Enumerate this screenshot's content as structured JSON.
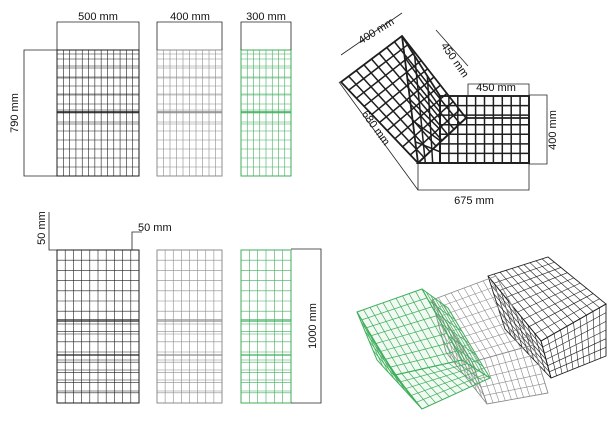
{
  "colors": {
    "dark": "#1e1e1e",
    "grey": "#8c8c8c",
    "green": "#3fae5a",
    "dim_line": "#222222"
  },
  "top_row": {
    "width_labels": [
      "500 mm",
      "400 mm",
      "300 mm"
    ],
    "height_label": "790 mm"
  },
  "plan_view": {
    "top_edge_label": "400 mm",
    "inner_edge_label": "450 mm",
    "arm_label": "450 mm",
    "right_edge_label": "400 mm",
    "outer_edge_label": "680 mm",
    "bottom_label": "675 mm"
  },
  "bottom_row": {
    "left_offset_label": "50 mm",
    "top_offset_label": "50 mm",
    "height_label": "1000 mm"
  }
}
